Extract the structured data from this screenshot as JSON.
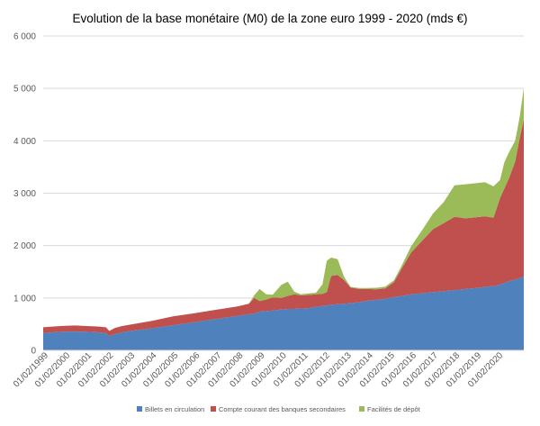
{
  "chart_data": {
    "type": "area",
    "stacked": true,
    "title": "Evolution de la base monétaire (M0) de la zone euro 1999 - 2020 (mds €)",
    "xlabel": "",
    "ylabel": "",
    "ylim": [
      0,
      6000
    ],
    "yticks": [
      0,
      1000,
      2000,
      3000,
      4000,
      5000,
      6000
    ],
    "ytick_labels": [
      "0",
      "1 000",
      "2 000",
      "3 000",
      "4 000",
      "5 000",
      "6 000"
    ],
    "xlim": [
      1999.0,
      2021.2
    ],
    "xticks": [
      1999.083,
      2000.083,
      2001.083,
      2002.083,
      2003.083,
      2004.083,
      2005.083,
      2006.083,
      2007.083,
      2008.083,
      2009.083,
      2010.083,
      2011.083,
      2012.083,
      2013.083,
      2014.083,
      2015.083,
      2016.083,
      2017.083,
      2018.083,
      2019.083,
      2020.083
    ],
    "xtick_labels": [
      "01/02/1999",
      "01/02/2000",
      "01/02/2001",
      "01/02/2002",
      "01/02/2003",
      "01/02/2004",
      "01/02/2005",
      "01/02/2006",
      "01/02/2007",
      "01/02/2008",
      "01/02/2009",
      "01/02/2010",
      "01/02/2011",
      "01/02/2012",
      "01/02/2013",
      "01/02/2014",
      "01/02/2015",
      "01/02/2016",
      "01/02/2017",
      "01/02/2018",
      "01/02/2019",
      "01/02/2020"
    ],
    "grid": true,
    "legend_position": "bottom",
    "x": [
      1999.0,
      1999.5,
      2000.0,
      2000.5,
      2001.0,
      2001.5,
      2001.9,
      2002.05,
      2002.3,
      2002.6,
      2003.0,
      2004.0,
      2005.0,
      2006.0,
      2007.0,
      2008.0,
      2008.5,
      2008.75,
      2009.0,
      2009.3,
      2009.6,
      2010.0,
      2010.3,
      2010.6,
      2010.9,
      2011.2,
      2011.6,
      2011.9,
      2012.1,
      2012.3,
      2012.6,
      2012.9,
      2013.2,
      2013.6,
      2014.0,
      2014.4,
      2014.8,
      2015.2,
      2015.6,
      2016.0,
      2016.5,
      2017.0,
      2017.5,
      2018.0,
      2018.5,
      2019.0,
      2019.4,
      2019.8,
      2020.1,
      2020.3,
      2020.5,
      2020.8,
      2021.0,
      2021.2
    ],
    "series": [
      {
        "name": "Billets en circulation",
        "color": "#4f81bd",
        "values": [
          330,
          345,
          360,
          360,
          355,
          345,
          330,
          270,
          310,
          340,
          370,
          420,
          480,
          540,
          600,
          660,
          690,
          700,
          740,
          750,
          760,
          780,
          790,
          790,
          800,
          805,
          830,
          850,
          860,
          870,
          880,
          890,
          900,
          920,
          950,
          965,
          985,
          1020,
          1040,
          1070,
          1090,
          1110,
          1130,
          1150,
          1170,
          1190,
          1210,
          1230,
          1250,
          1290,
          1320,
          1350,
          1380,
          1410
        ]
      },
      {
        "name": "Compte courant des banques secondaires",
        "color": "#c0504d",
        "values": [
          110,
          110,
          110,
          115,
          110,
          110,
          110,
          100,
          115,
          120,
          120,
          140,
          170,
          170,
          175,
          180,
          200,
          300,
          200,
          220,
          250,
          220,
          250,
          280,
          250,
          250,
          240,
          230,
          250,
          550,
          560,
          450,
          300,
          250,
          220,
          200,
          200,
          280,
          550,
          800,
          1000,
          1200,
          1300,
          1400,
          1350,
          1350,
          1350,
          1300,
          1650,
          1800,
          1950,
          2250,
          2650,
          3000
        ]
      },
      {
        "name": "Facilités de dépôt",
        "color": "#9bbb59",
        "values": [
          0,
          0,
          0,
          0,
          0,
          0,
          0,
          0,
          0,
          0,
          0,
          0,
          0,
          0,
          0,
          0,
          0,
          50,
          230,
          100,
          50,
          250,
          270,
          50,
          20,
          30,
          30,
          180,
          600,
          350,
          300,
          60,
          10,
          20,
          20,
          30,
          30,
          40,
          60,
          120,
          200,
          300,
          400,
          600,
          650,
          650,
          650,
          600,
          350,
          500,
          500,
          400,
          400,
          600
        ]
      }
    ]
  }
}
